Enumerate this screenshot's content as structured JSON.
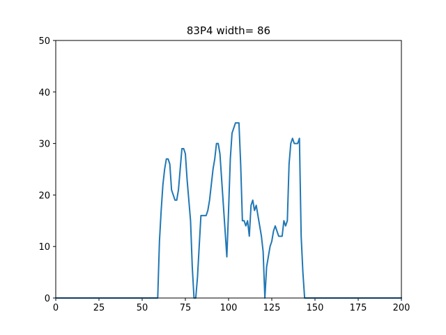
{
  "chart_data": {
    "type": "line",
    "title": "83P4 width= 86",
    "xlabel": "",
    "ylabel": "",
    "xlim": [
      0,
      200
    ],
    "ylim": [
      0,
      50
    ],
    "xticks": [
      0,
      25,
      50,
      75,
      100,
      125,
      150,
      175,
      200
    ],
    "yticks": [
      0,
      10,
      20,
      30,
      40,
      50
    ],
    "grid": false,
    "series": [
      {
        "color": "#1f77b4",
        "x": [
          0,
          59,
          60,
          61,
          62,
          63,
          64,
          65,
          66,
          67,
          68,
          69,
          70,
          71,
          72,
          73,
          74,
          75,
          76,
          77,
          78,
          79,
          80,
          81,
          82,
          83,
          84,
          85,
          86,
          87,
          88,
          89,
          90,
          91,
          92,
          93,
          94,
          95,
          96,
          97,
          98,
          99,
          100,
          101,
          102,
          103,
          104,
          105,
          106,
          107,
          108,
          109,
          110,
          111,
          112,
          113,
          114,
          115,
          116,
          117,
          118,
          119,
          120,
          121,
          122,
          123,
          124,
          125,
          126,
          127,
          128,
          129,
          130,
          131,
          132,
          133,
          134,
          135,
          136,
          137,
          138,
          139,
          140,
          141,
          142,
          143,
          144,
          145,
          146,
          200
        ],
        "y": [
          0,
          0,
          11,
          17,
          22,
          25,
          27,
          27,
          26,
          21,
          20,
          19,
          19,
          21,
          25,
          29,
          29,
          28,
          23,
          19,
          15,
          6,
          0,
          0,
          4,
          10,
          16,
          16,
          16,
          16,
          17,
          19,
          22,
          25,
          27,
          30,
          30,
          28,
          23,
          18,
          13,
          8,
          17,
          27,
          32,
          33,
          34,
          34,
          34,
          26,
          15,
          15,
          14,
          15,
          12,
          18,
          19,
          17,
          18,
          16,
          14,
          12,
          9,
          0,
          6,
          8,
          10,
          11,
          13,
          14,
          13,
          12,
          12,
          12,
          15,
          14,
          15,
          26,
          30,
          31,
          30,
          30,
          30,
          31,
          12,
          5,
          0,
          0,
          0,
          0
        ]
      }
    ]
  }
}
